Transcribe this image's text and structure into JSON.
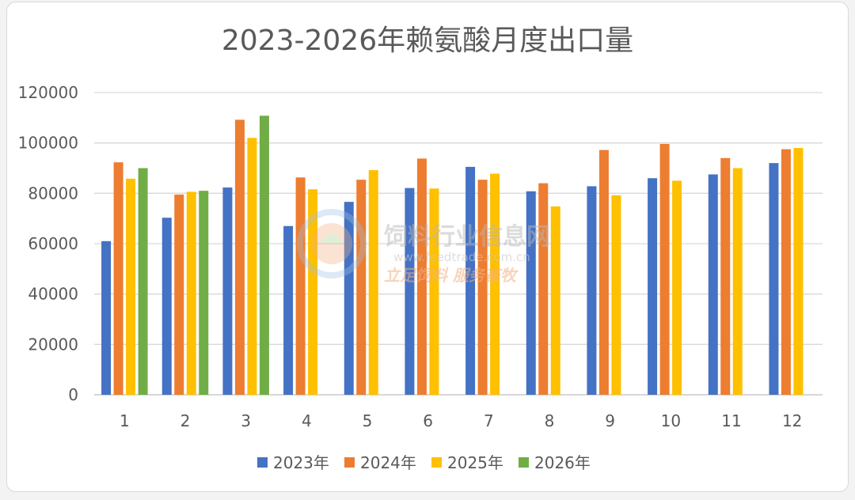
{
  "chart_data": {
    "type": "bar",
    "title": "2023-2026年赖氨酸月度出口量",
    "xlabel": "",
    "ylabel": "",
    "ylim": [
      0,
      120000
    ],
    "yticks": [
      0,
      20000,
      40000,
      60000,
      80000,
      100000,
      120000
    ],
    "categories": [
      "1",
      "2",
      "3",
      "4",
      "5",
      "6",
      "7",
      "8",
      "9",
      "10",
      "11",
      "12"
    ],
    "grid": true,
    "legend_position": "bottom",
    "series": [
      {
        "name": "2023年",
        "color": "#4472c4",
        "values": [
          61000,
          70300,
          82300,
          67000,
          76600,
          82100,
          90500,
          80800,
          82800,
          86000,
          87500,
          92000
        ]
      },
      {
        "name": "2024年",
        "color": "#ed7d31",
        "values": [
          92300,
          79500,
          109200,
          86300,
          85400,
          93800,
          85400,
          84000,
          97200,
          99600,
          94000,
          97500
        ]
      },
      {
        "name": "2025年",
        "color": "#ffc000",
        "values": [
          85800,
          80600,
          102000,
          81600,
          89200,
          81900,
          87800,
          74800,
          79200,
          85000,
          90000,
          98000
        ]
      },
      {
        "name": "2026年",
        "color": "#70ad47",
        "values": [
          90000,
          81000,
          110800,
          null,
          null,
          null,
          null,
          null,
          null,
          null,
          null,
          null
        ]
      }
    ]
  },
  "watermark": {
    "name": "饲料行业信息网",
    "url": "www.feedtrade.com.cn",
    "slogan": "立足饲料  服务畜牧"
  }
}
